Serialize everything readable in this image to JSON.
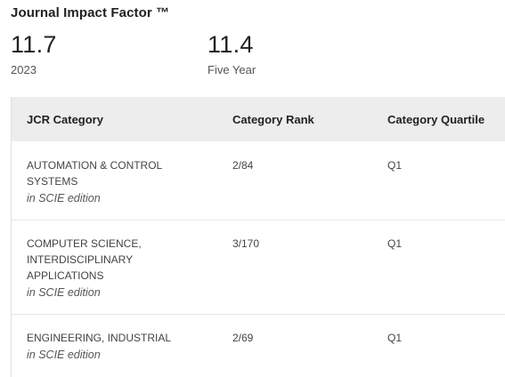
{
  "jif": {
    "title": "Journal Impact Factor ™",
    "metrics": [
      {
        "value": "11.7",
        "label": "2023"
      },
      {
        "value": "11.4",
        "label": "Five Year"
      }
    ]
  },
  "jcr": {
    "headers": {
      "category": "JCR Category",
      "rank": "Category Rank",
      "quartile": "Category Quartile"
    },
    "rows": [
      {
        "category_lines": [
          "AUTOMATION & CONTROL",
          "SYSTEMS"
        ],
        "edition": "in SCIE edition",
        "rank": "2/84",
        "quartile": "Q1"
      },
      {
        "category_lines": [
          "COMPUTER SCIENCE,",
          "INTERDISCIPLINARY",
          "APPLICATIONS"
        ],
        "edition": "in SCIE edition",
        "rank": "3/170",
        "quartile": "Q1"
      },
      {
        "category_lines": [
          "ENGINEERING, INDUSTRIAL"
        ],
        "edition": "in SCIE edition",
        "rank": "2/69",
        "quartile": "Q1"
      }
    ]
  }
}
